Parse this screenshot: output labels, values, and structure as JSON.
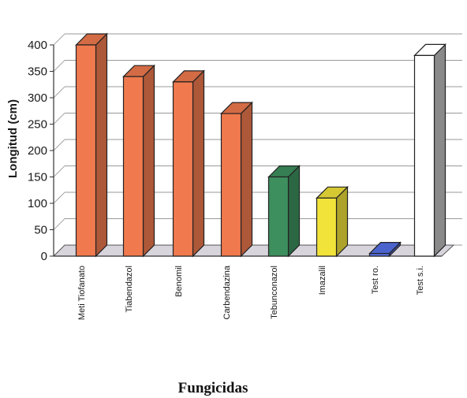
{
  "chart_data": {
    "type": "bar",
    "title": "",
    "xlabel": "Fungicidas",
    "ylabel": "Longitud (cm)",
    "categories": [
      "Meti Tiofanato",
      "Tiabendazol",
      "Benomil",
      "Carbendazina",
      "Tebunconazol",
      "Imazalil",
      "Test ro.",
      "Test s.i."
    ],
    "values": [
      400,
      340,
      330,
      270,
      150,
      110,
      5,
      380
    ],
    "ylim": [
      0,
      400
    ],
    "yticks": [
      "0",
      "50",
      "100",
      "150",
      "200",
      "250",
      "300",
      "350",
      "400"
    ],
    "grid": true,
    "bar_colors": [
      "#f07a4e",
      "#f07a4e",
      "#f07a4e",
      "#f07a4e",
      "#3d8f5e",
      "#f2e33a",
      "#5570e8",
      "#ffffff"
    ]
  }
}
